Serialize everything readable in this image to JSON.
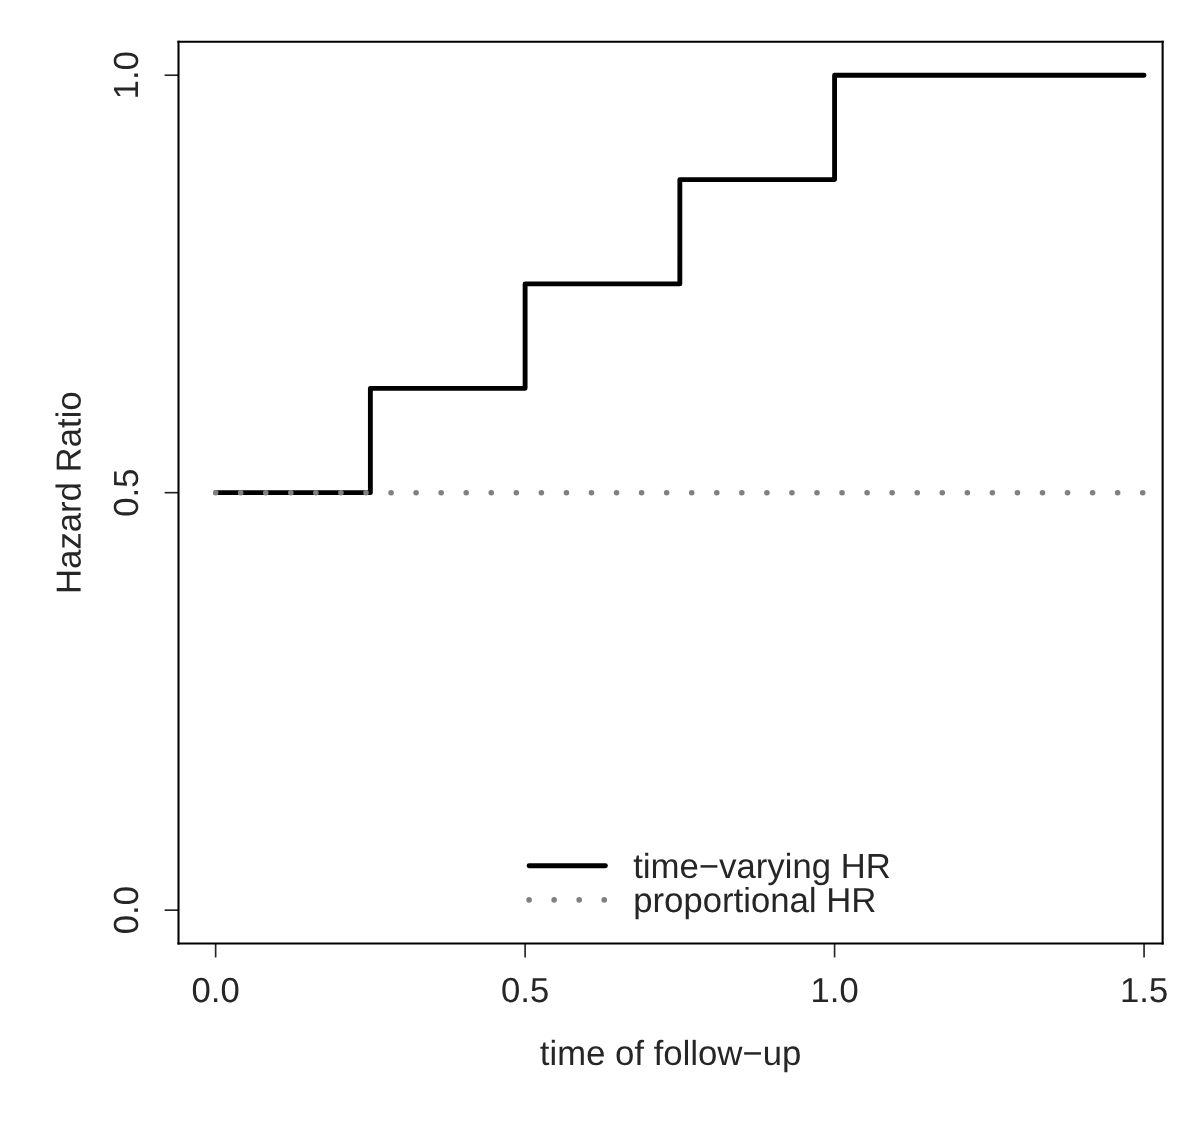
{
  "chart_data": {
    "type": "step",
    "xlabel": "time of follow−up",
    "ylabel": "Hazard Ratio",
    "series": [
      {
        "name": "time−varying HR",
        "color": "#000000",
        "line_style": "solid",
        "x": [
          0,
          0.25,
          0.5,
          0.75,
          1.0,
          1.5
        ],
        "values": [
          0.5,
          0.625,
          0.75,
          0.875,
          1.0,
          1.0
        ]
      },
      {
        "name": "proportional HR",
        "type": "line",
        "color": "#808080",
        "line_style": "dotted",
        "x": [
          0,
          1.5
        ],
        "values": [
          0.5,
          0.5
        ]
      }
    ],
    "xlim": [
      -0.06,
      1.53
    ],
    "ylim": [
      -0.04,
      1.04
    ],
    "xticks": [
      {
        "value": 0,
        "label": "0.0"
      },
      {
        "value": 0.5,
        "label": "0.5"
      },
      {
        "value": 1.0,
        "label": "1.0"
      },
      {
        "value": 1.5,
        "label": "1.5"
      }
    ],
    "yticks": [
      {
        "value": 0,
        "label": "0.0"
      },
      {
        "value": 0.5,
        "label": "0.5"
      },
      {
        "value": 1.0,
        "label": "1.0"
      }
    ],
    "grid": false,
    "legend": "bottom",
    "marker": "none"
  }
}
